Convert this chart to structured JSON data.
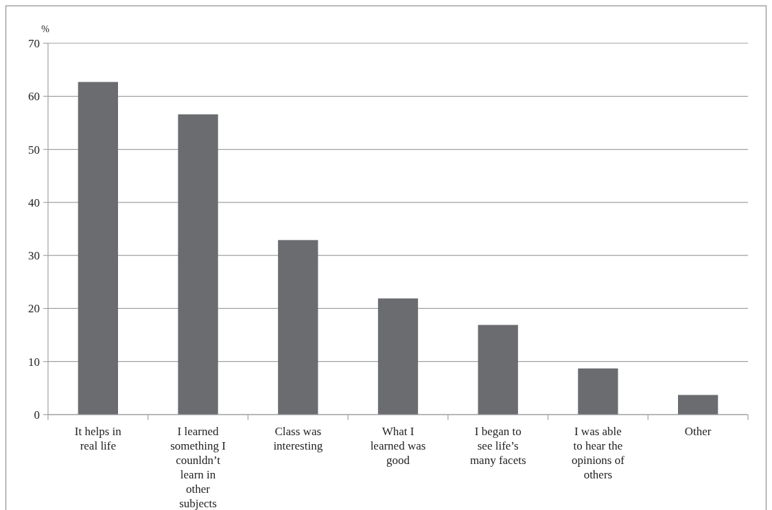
{
  "chart_data": {
    "type": "bar",
    "ylabel": "%",
    "categories": [
      "It helps in real life",
      "I learned something I counldn’t learn in other subjects",
      "Class was interesting",
      "What I learned was good",
      "I began to see life’s many facets",
      "I was able to hear the opinions of others",
      "Other"
    ],
    "values": [
      62.7,
      56.6,
      32.9,
      21.9,
      16.9,
      8.7,
      3.7
    ],
    "color": "#6b6c70",
    "ylim": [
      0,
      70
    ],
    "yticks": [
      0,
      10,
      20,
      30,
      40,
      50,
      60,
      70
    ],
    "grid": "y"
  }
}
